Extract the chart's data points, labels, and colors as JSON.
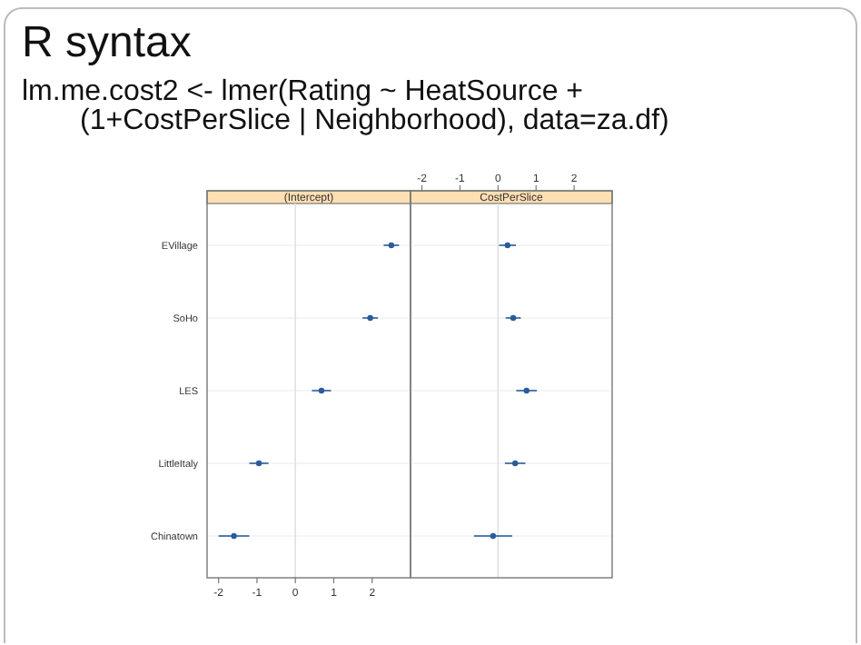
{
  "chart_data": [
    {
      "type": "scatter",
      "orientation": "horizontal",
      "title": "(Intercept)",
      "annotations": [
        "R syntax",
        "lm.me.cost2 <- lmer(Rating ~ HeatSource +",
        "(1+CostPerSlice | Neighborhood), data=za.df)"
      ],
      "categories": [
        "EVillage",
        "SoHo",
        "LES",
        "LittleItaly",
        "Chinatown"
      ],
      "series": [
        {
          "color": "#2b5b9b",
          "values": [
            2.5,
            1.95,
            0.68,
            -0.95,
            -1.6
          ],
          "errors": [
            0.2,
            0.2,
            0.25,
            0.25,
            0.4
          ]
        }
      ],
      "xlim": [
        -2.3,
        3.0
      ],
      "xticks": [
        -2,
        -1,
        0,
        1,
        2
      ],
      "grid": "y",
      "ref_lines": [
        {
          "axis": "x",
          "value": 0,
          "color": "#e0e0e0"
        }
      ],
      "marker": "circle"
    },
    {
      "type": "scatter",
      "orientation": "horizontal",
      "title": "CostPerSlice",
      "categories": [
        null,
        null,
        null,
        null,
        null
      ],
      "series": [
        {
          "color": "#2b5b9b",
          "values": [
            0.25,
            0.4,
            0.75,
            0.45,
            -0.13
          ],
          "errors": [
            0.22,
            0.2,
            0.27,
            0.27,
            0.5
          ]
        }
      ],
      "xlim": [
        -2.3,
        3.0
      ],
      "xticks": [
        -2,
        -1,
        0,
        1,
        2
      ],
      "tick_labels": "x",
      "grid": "y",
      "ref_lines": [
        {
          "axis": "x",
          "value": 0,
          "color": "#e0e0e0"
        }
      ],
      "marker": "circle"
    }
  ]
}
